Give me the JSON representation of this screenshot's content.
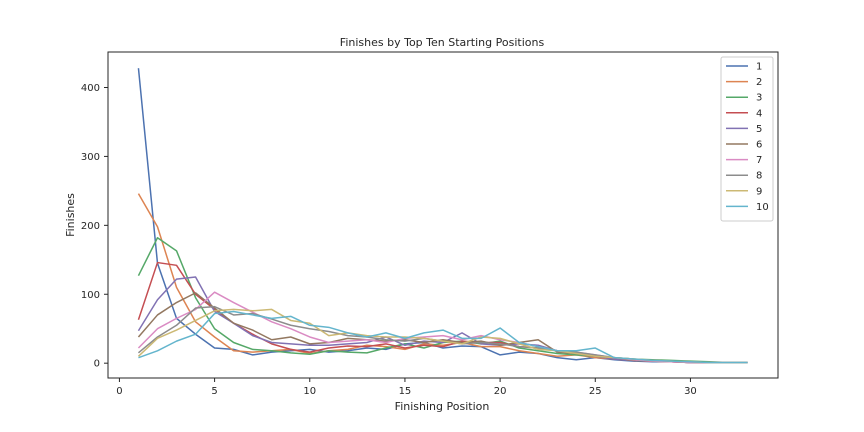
{
  "chart_data": {
    "type": "line",
    "title": "Finishes by Top Ten Starting Positions",
    "xlabel": "Finishing Position",
    "ylabel": "Finishes",
    "xlim": [
      -0.6,
      34.6
    ],
    "ylim": [
      -21.5,
      451.5
    ],
    "xticks": [
      0,
      5,
      10,
      15,
      20,
      25,
      30
    ],
    "yticks": [
      0,
      100,
      200,
      300,
      400
    ],
    "grid": false,
    "legend_position": "top-right",
    "x": [
      1,
      2,
      3,
      4,
      5,
      6,
      7,
      8,
      9,
      10,
      11,
      12,
      13,
      14,
      15,
      16,
      17,
      18,
      19,
      20,
      21,
      22,
      23,
      24,
      25,
      26,
      27,
      28,
      29,
      30,
      31,
      32,
      33
    ],
    "series": [
      {
        "name": "1",
        "color": "#4c72b0",
        "values": [
          428,
          145,
          65,
          42,
          22,
          20,
          12,
          16,
          18,
          20,
          16,
          18,
          22,
          20,
          28,
          30,
          22,
          25,
          24,
          12,
          16,
          14,
          8,
          5,
          8,
          5,
          3,
          2,
          2,
          1,
          1,
          1,
          1
        ]
      },
      {
        "name": "2",
        "color": "#dd8452",
        "values": [
          246,
          198,
          110,
          60,
          38,
          18,
          16,
          18,
          20,
          14,
          18,
          20,
          26,
          24,
          20,
          28,
          26,
          30,
          24,
          24,
          18,
          14,
          10,
          12,
          8,
          6,
          4,
          3,
          2,
          1,
          1,
          1,
          1
        ]
      },
      {
        "name": "3",
        "color": "#55a868",
        "values": [
          127,
          182,
          163,
          95,
          50,
          30,
          20,
          18,
          15,
          13,
          18,
          16,
          15,
          22,
          28,
          22,
          30,
          32,
          28,
          32,
          22,
          18,
          14,
          12,
          10,
          8,
          6,
          5,
          4,
          3,
          2,
          1,
          1
        ]
      },
      {
        "name": "4",
        "color": "#c44e52",
        "values": [
          63,
          146,
          142,
          100,
          78,
          58,
          42,
          28,
          20,
          16,
          22,
          25,
          24,
          28,
          22,
          26,
          24,
          32,
          30,
          30,
          24,
          22,
          18,
          14,
          10,
          6,
          4,
          3,
          2,
          1,
          1,
          1,
          1
        ]
      },
      {
        "name": "5",
        "color": "#8172b3",
        "values": [
          47,
          92,
          122,
          125,
          75,
          58,
          40,
          30,
          28,
          26,
          26,
          28,
          30,
          38,
          26,
          32,
          30,
          44,
          28,
          26,
          28,
          26,
          18,
          14,
          10,
          6,
          4,
          3,
          2,
          1,
          1,
          1,
          1
        ]
      },
      {
        "name": "6",
        "color": "#937860",
        "values": [
          38,
          70,
          88,
          102,
          80,
          58,
          48,
          34,
          38,
          28,
          30,
          36,
          34,
          32,
          34,
          30,
          34,
          30,
          32,
          26,
          30,
          34,
          16,
          14,
          10,
          8,
          4,
          3,
          2,
          1,
          1,
          1,
          1
        ]
      },
      {
        "name": "7",
        "color": "#da8bc3",
        "values": [
          22,
          50,
          65,
          78,
          103,
          88,
          74,
          60,
          50,
          38,
          30,
          32,
          34,
          30,
          36,
          38,
          40,
          34,
          40,
          34,
          30,
          24,
          18,
          16,
          12,
          8,
          5,
          3,
          2,
          1,
          1,
          1,
          1
        ]
      },
      {
        "name": "8",
        "color": "#8c8c8c",
        "values": [
          15,
          38,
          55,
          80,
          82,
          70,
          72,
          64,
          55,
          50,
          46,
          40,
          38,
          34,
          32,
          36,
          32,
          28,
          30,
          28,
          24,
          22,
          18,
          16,
          12,
          8,
          6,
          4,
          3,
          2,
          1,
          1,
          1
        ]
      },
      {
        "name": "9",
        "color": "#ccb974",
        "values": [
          10,
          36,
          48,
          62,
          76,
          78,
          76,
          78,
          62,
          58,
          40,
          44,
          40,
          38,
          38,
          36,
          32,
          28,
          38,
          36,
          28,
          20,
          18,
          14,
          10,
          8,
          6,
          4,
          3,
          2,
          1,
          1,
          1
        ]
      },
      {
        "name": "10",
        "color": "#64b5cd",
        "values": [
          8,
          18,
          32,
          42,
          72,
          75,
          70,
          65,
          68,
          55,
          52,
          44,
          38,
          44,
          36,
          44,
          48,
          36,
          36,
          51,
          30,
          24,
          18,
          18,
          22,
          8,
          6,
          4,
          3,
          2,
          1,
          1,
          1
        ]
      }
    ]
  }
}
